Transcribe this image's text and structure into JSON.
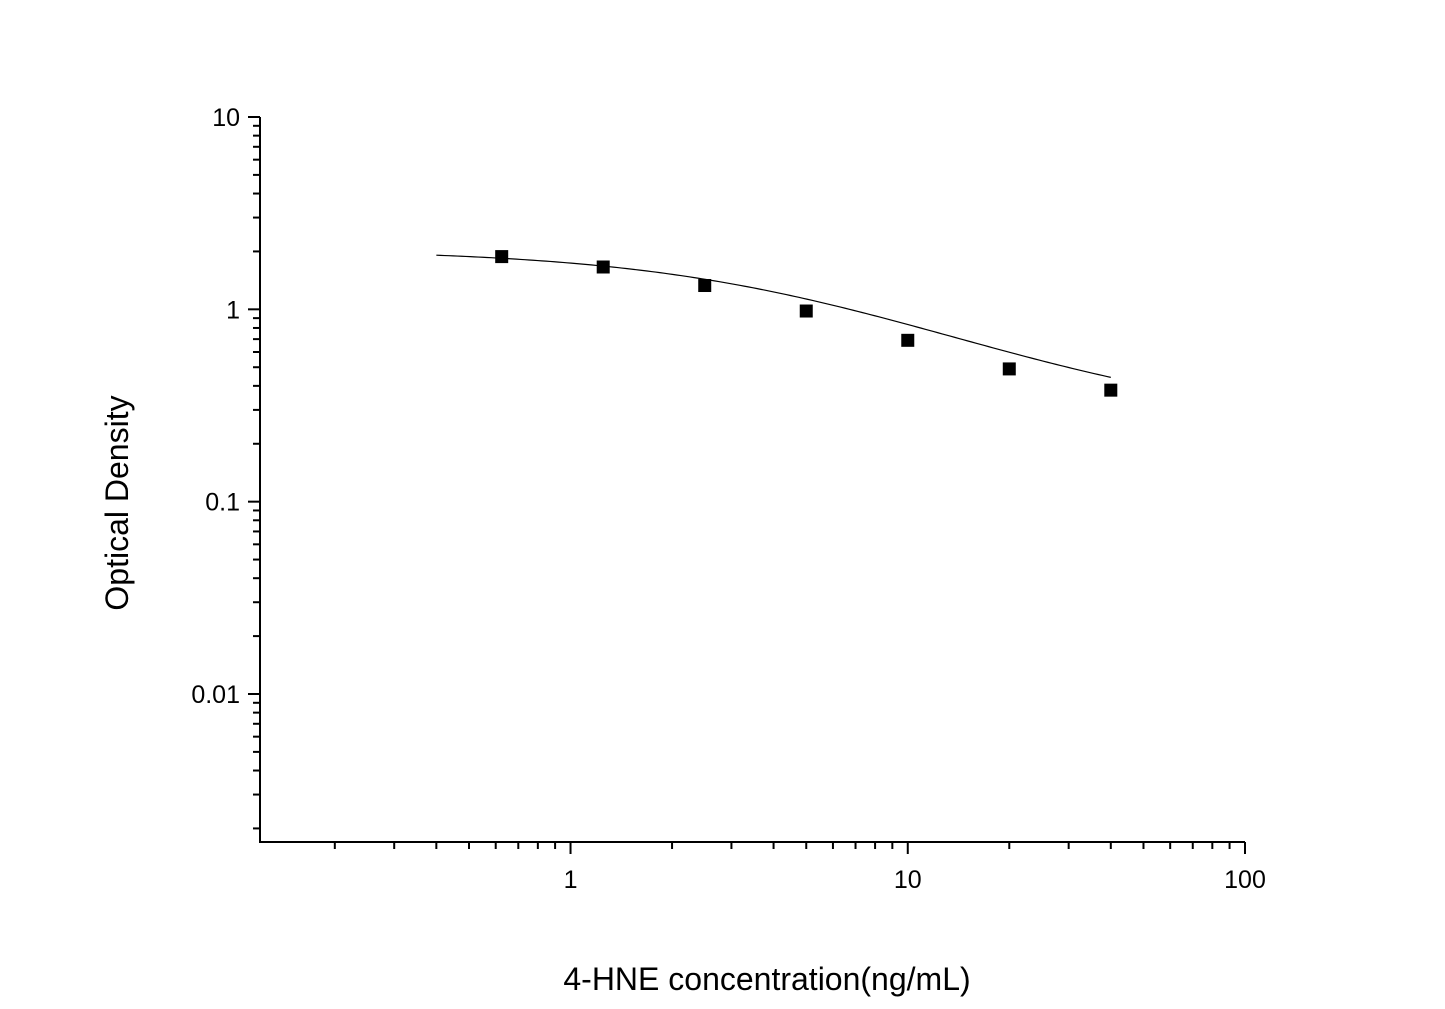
{
  "chart_data": {
    "type": "scatter",
    "title": "",
    "xlabel": "4-HNE concentration(ng/mL)",
    "ylabel": "Optical Density",
    "xscale": "log",
    "yscale": "log",
    "xlim": [
      0.12,
      100
    ],
    "ylim": [
      0.0017,
      10
    ],
    "xticks": [
      {
        "value": 1,
        "label": "1"
      },
      {
        "value": 10,
        "label": "10"
      },
      {
        "value": 100,
        "label": "100"
      }
    ],
    "yticks": [
      {
        "value": 10,
        "label": "10"
      },
      {
        "value": 1,
        "label": "1"
      },
      {
        "value": 0.1,
        "label": "0.1"
      },
      {
        "value": 0.01,
        "label": "0.01"
      }
    ],
    "grid": false,
    "legend": "none",
    "marker_color": "#000000",
    "line_color": "#000000",
    "points": {
      "x": [
        0.625,
        1.25,
        2.5,
        5,
        10,
        20,
        40
      ],
      "y": [
        1.88,
        1.66,
        1.33,
        0.98,
        0.69,
        0.49,
        0.38
      ]
    },
    "fit_curve": {
      "type": "4PL",
      "A": 2.05,
      "B": 1.0,
      "C": 4.8,
      "D": 0.25,
      "x_range": [
        0.4,
        40
      ]
    }
  }
}
